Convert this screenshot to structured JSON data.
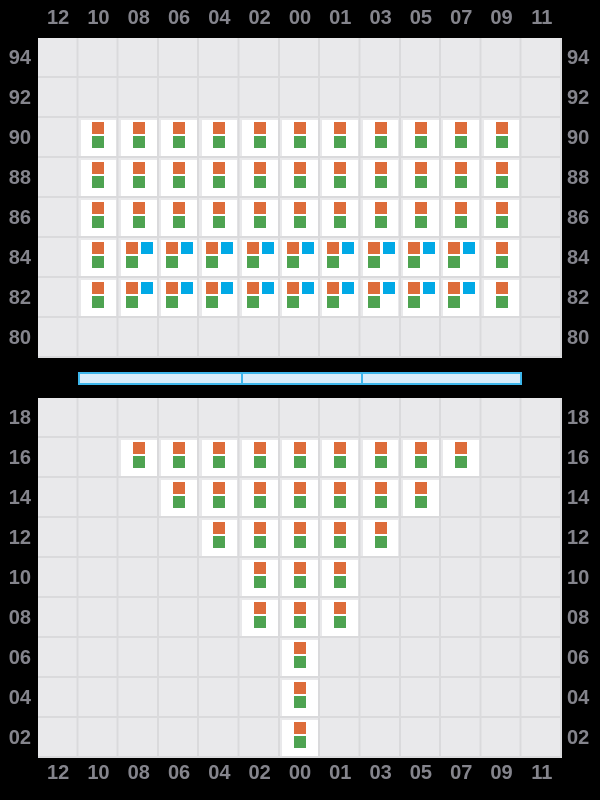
{
  "colors": {
    "background": "#000000",
    "panel_bg": "#e9e9eb",
    "gridline": "#dadadc",
    "cell_bg": "#ffffff",
    "orange": "#dd6c3a",
    "green": "#4ea351",
    "blue": "#00a9e6",
    "label": "#84848c",
    "slider_border": "#3eb7ec",
    "slider_fill": "#d9edfa"
  },
  "axis": {
    "columns": [
      "12",
      "10",
      "08",
      "06",
      "04",
      "02",
      "00",
      "01",
      "03",
      "05",
      "07",
      "09",
      "11"
    ],
    "top_rows": [
      "94",
      "92",
      "90",
      "88",
      "86",
      "84",
      "82",
      "80"
    ],
    "bottom_rows": [
      "18",
      "16",
      "14",
      "12",
      "10",
      "08",
      "06",
      "04",
      "02"
    ]
  },
  "chart_data": {
    "type": "heatmap",
    "title": "",
    "column_labels": [
      "12",
      "10",
      "08",
      "06",
      "04",
      "02",
      "00",
      "01",
      "03",
      "05",
      "07",
      "09",
      "11"
    ],
    "marker_colors": {
      "orange": "#dd6c3a",
      "green": "#4ea351",
      "blue": "#00a9e6"
    },
    "top_panel": {
      "row_labels": [
        "94",
        "92",
        "90",
        "88",
        "86",
        "84",
        "82",
        "80"
      ],
      "rows": [
        {
          "row": "94",
          "cells": []
        },
        {
          "row": "92",
          "cells": []
        },
        {
          "row": "90",
          "cells": [
            {
              "cols": [
                "10",
                "08",
                "06",
                "04",
                "02",
                "00",
                "01",
                "03",
                "05",
                "07",
                "09"
              ],
              "markers": [
                "orange",
                "green"
              ]
            }
          ]
        },
        {
          "row": "88",
          "cells": [
            {
              "cols": [
                "10",
                "08",
                "06",
                "04",
                "02",
                "00",
                "01",
                "03",
                "05",
                "07",
                "09"
              ],
              "markers": [
                "orange",
                "green"
              ]
            }
          ]
        },
        {
          "row": "86",
          "cells": [
            {
              "cols": [
                "10",
                "08",
                "06",
                "04",
                "02",
                "00",
                "01",
                "03",
                "05",
                "07",
                "09"
              ],
              "markers": [
                "orange",
                "green"
              ]
            }
          ]
        },
        {
          "row": "84",
          "cells": [
            {
              "cols": [
                "10",
                "09"
              ],
              "markers": [
                "orange",
                "green"
              ]
            },
            {
              "cols": [
                "08",
                "06",
                "04",
                "02",
                "00",
                "01",
                "03",
                "05",
                "07"
              ],
              "markers": [
                "orange",
                "blue",
                "green"
              ]
            }
          ]
        },
        {
          "row": "82",
          "cells": [
            {
              "cols": [
                "10",
                "09"
              ],
              "markers": [
                "orange",
                "green"
              ]
            },
            {
              "cols": [
                "08",
                "06",
                "04",
                "02",
                "00",
                "01",
                "03",
                "05",
                "07"
              ],
              "markers": [
                "orange",
                "blue",
                "green"
              ]
            }
          ]
        },
        {
          "row": "80",
          "cells": []
        }
      ]
    },
    "bottom_panel": {
      "row_labels": [
        "18",
        "16",
        "14",
        "12",
        "10",
        "08",
        "06",
        "04",
        "02"
      ],
      "rows": [
        {
          "row": "18",
          "cells": []
        },
        {
          "row": "16",
          "cells": [
            {
              "cols": [
                "08",
                "06",
                "04",
                "02",
                "00",
                "01",
                "03",
                "05",
                "07"
              ],
              "markers": [
                "orange",
                "green"
              ]
            }
          ]
        },
        {
          "row": "14",
          "cells": [
            {
              "cols": [
                "06",
                "04",
                "02",
                "00",
                "01",
                "03",
                "05"
              ],
              "markers": [
                "orange",
                "green"
              ]
            }
          ]
        },
        {
          "row": "12",
          "cells": [
            {
              "cols": [
                "04",
                "02",
                "00",
                "01",
                "03"
              ],
              "markers": [
                "orange",
                "green"
              ]
            }
          ]
        },
        {
          "row": "10",
          "cells": [
            {
              "cols": [
                "02",
                "00",
                "01"
              ],
              "markers": [
                "orange",
                "green"
              ]
            }
          ]
        },
        {
          "row": "08",
          "cells": [
            {
              "cols": [
                "02",
                "00",
                "01"
              ],
              "markers": [
                "orange",
                "green"
              ]
            }
          ]
        },
        {
          "row": "06",
          "cells": [
            {
              "cols": [
                "00"
              ],
              "markers": [
                "orange",
                "green"
              ]
            }
          ]
        },
        {
          "row": "04",
          "cells": [
            {
              "cols": [
                "00"
              ],
              "markers": [
                "orange",
                "green"
              ]
            }
          ]
        },
        {
          "row": "02",
          "cells": [
            {
              "cols": [
                "00"
              ],
              "markers": [
                "orange",
                "green"
              ]
            }
          ]
        }
      ]
    },
    "slider": {
      "start_col": "10",
      "end_col": "09",
      "dividers_before_cols": [
        "02",
        "03"
      ]
    }
  }
}
